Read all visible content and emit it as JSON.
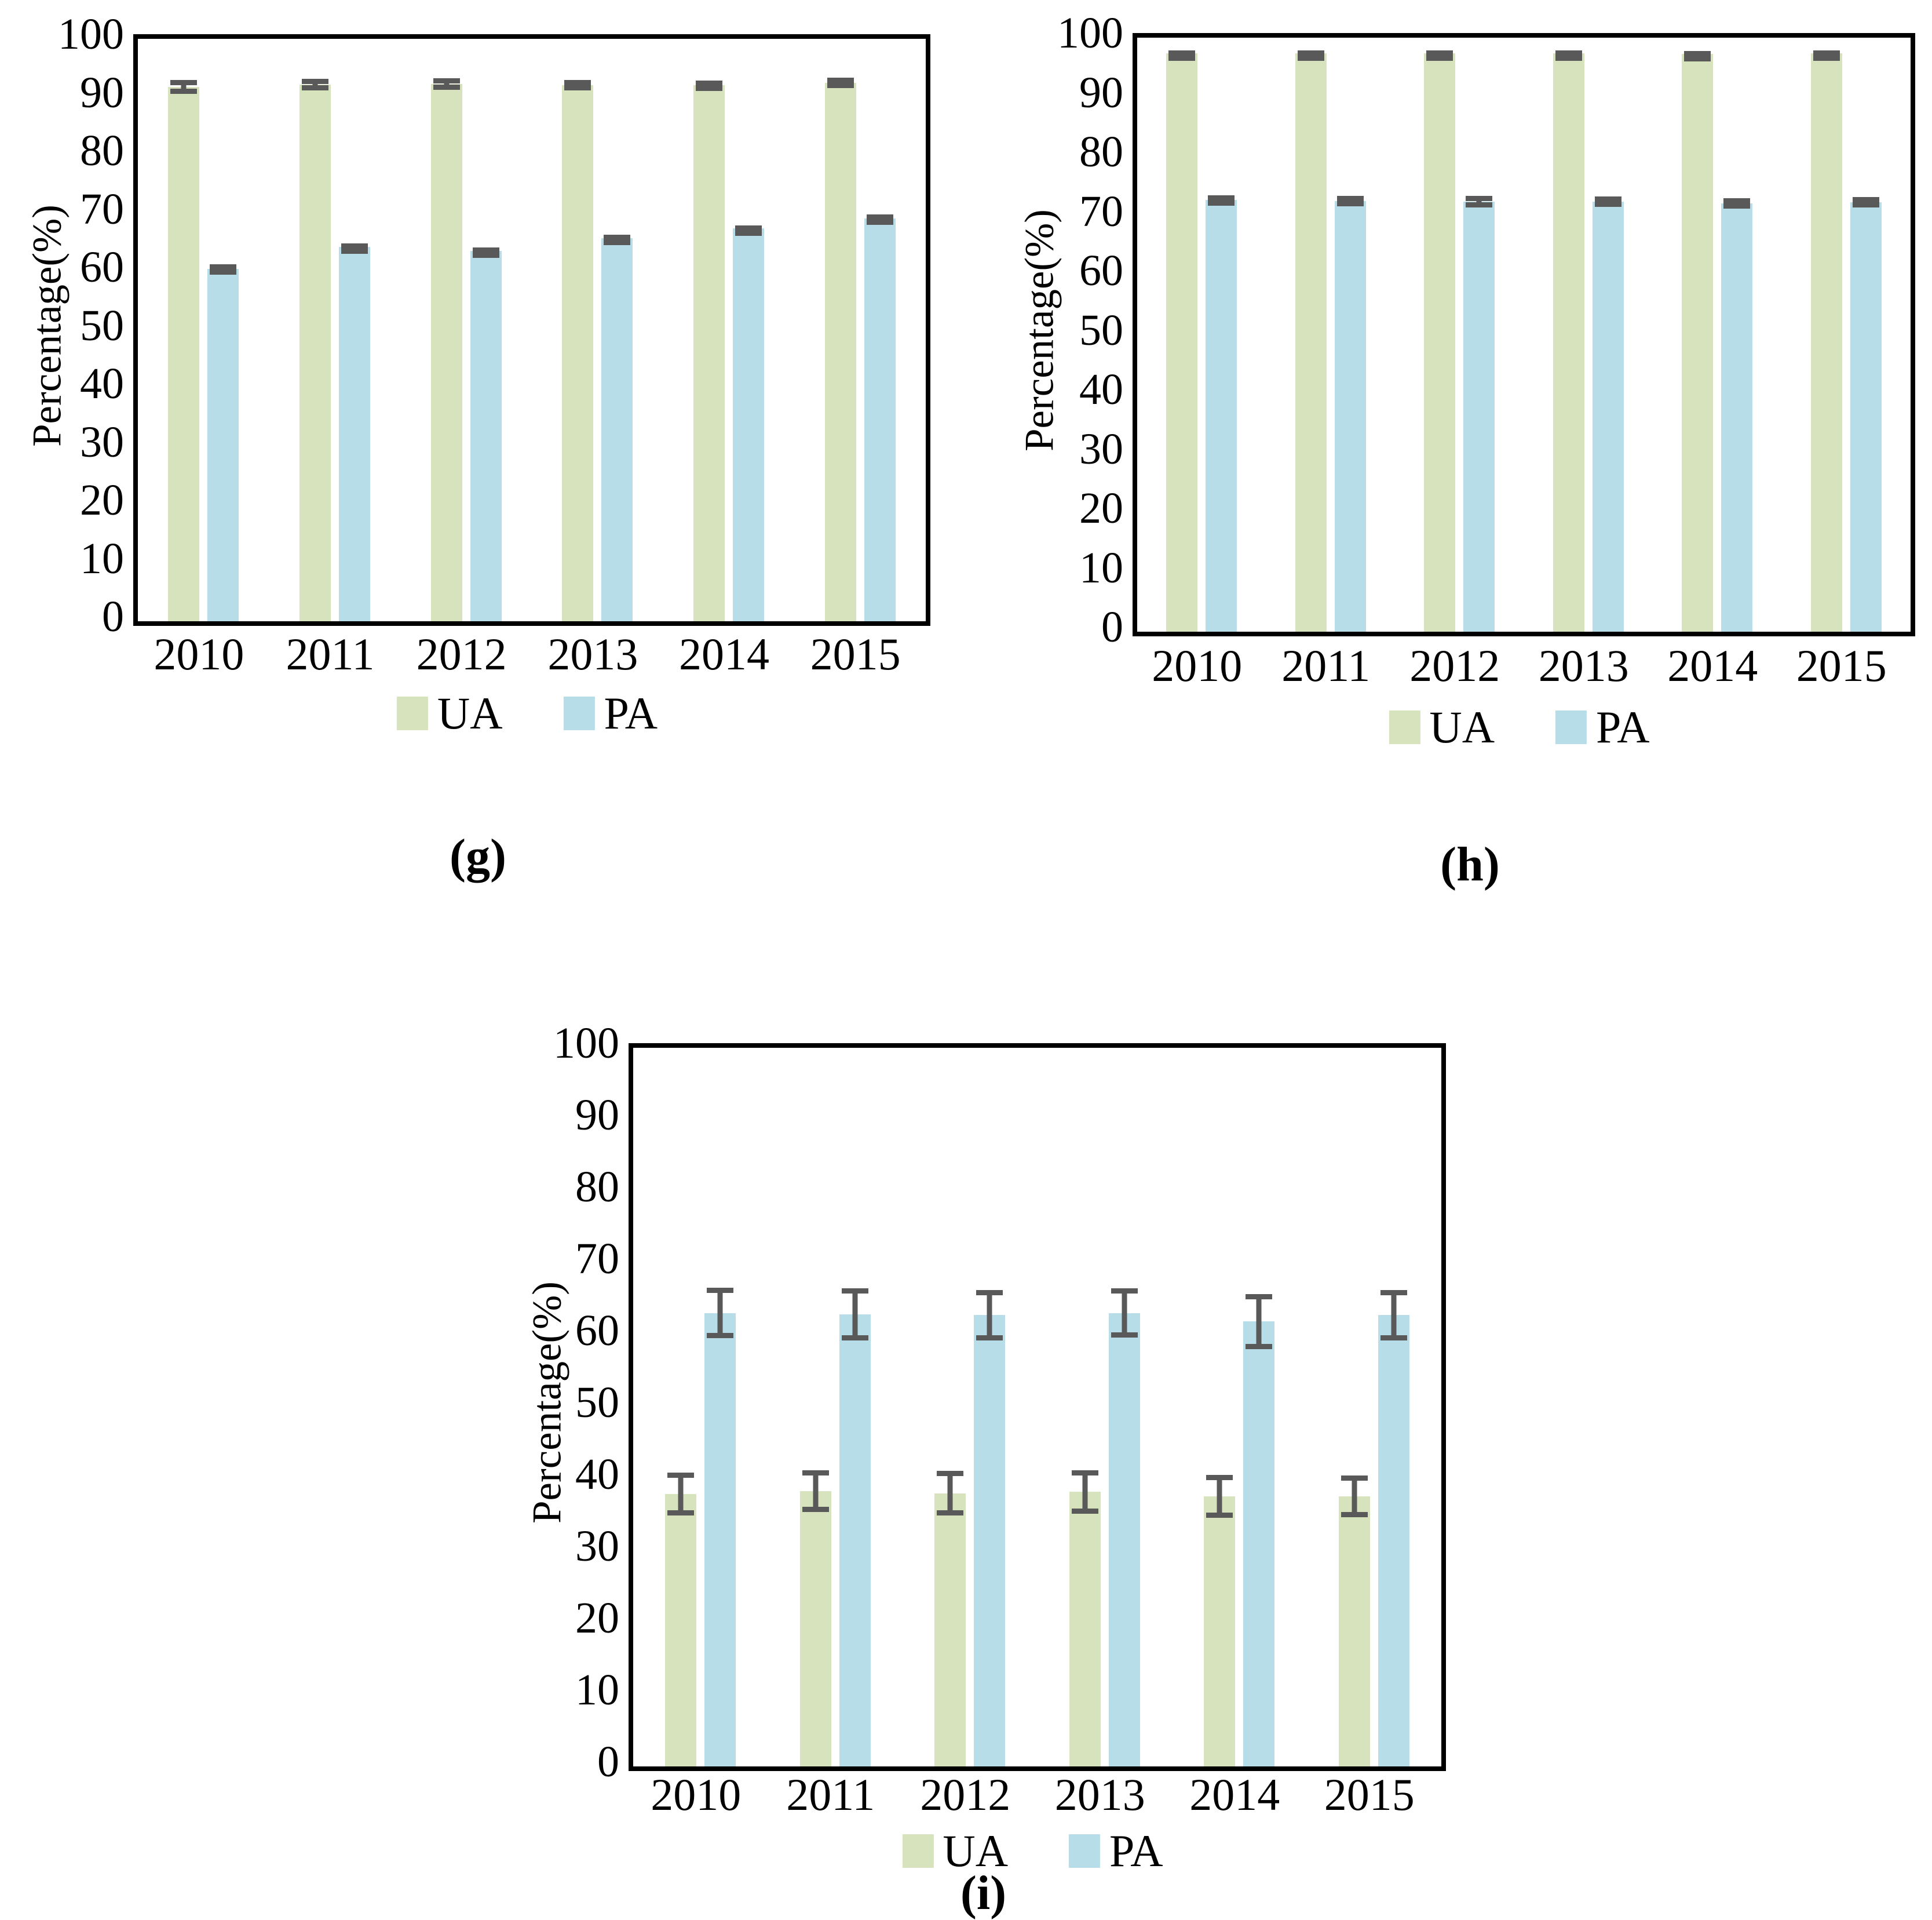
{
  "chart_data": [
    {
      "id": "g",
      "type": "bar",
      "panel_label": "(g)",
      "ylabel": "Percentage(%)",
      "ylim": [
        0,
        100
      ],
      "ytick_step": 10,
      "grid": false,
      "legend_position": "bottom",
      "error_color": "#595959",
      "categories": [
        "2010",
        "2011",
        "2012",
        "2013",
        "2014",
        "2015"
      ],
      "series": [
        {
          "name": "UA",
          "color": "#d7e3bd",
          "values": [
            91.7,
            92.1,
            92.2,
            92.0,
            92.0,
            92.4
          ],
          "errors": [
            1.2,
            1.0,
            1.0,
            0.9,
            0.8,
            0.9
          ]
        },
        {
          "name": "PA",
          "color": "#b7dde8",
          "values": [
            60.5,
            64.3,
            63.6,
            65.8,
            67.5,
            69.2
          ],
          "errors": [
            0.8,
            0.6,
            0.6,
            0.6,
            0.5,
            0.7
          ]
        }
      ]
    },
    {
      "id": "h",
      "type": "bar",
      "panel_label": "(h)",
      "ylabel": "Percentage(%)",
      "ylim": [
        0,
        100
      ],
      "ytick_step": 10,
      "grid": false,
      "legend_position": "bottom",
      "error_color": "#595959",
      "categories": [
        "2010",
        "2011",
        "2012",
        "2013",
        "2014",
        "2015"
      ],
      "series": [
        {
          "name": "UA",
          "color": "#d7e3bd",
          "values": [
            97.4,
            97.4,
            97.4,
            97.4,
            97.3,
            97.4
          ],
          "errors": [
            0.5,
            0.5,
            0.5,
            0.5,
            0.5,
            0.5
          ]
        },
        {
          "name": "PA",
          "color": "#b7dde8",
          "values": [
            72.7,
            72.5,
            72.4,
            72.4,
            72.1,
            72.3
          ],
          "errors": [
            0.8,
            0.9,
            1.0,
            0.9,
            0.9,
            0.9
          ]
        }
      ]
    },
    {
      "id": "i",
      "type": "bar",
      "panel_label": "(i)",
      "ylabel": "Percentage(%)",
      "ylim": [
        0,
        100
      ],
      "ytick_step": 10,
      "grid": false,
      "legend_position": "bottom",
      "error_color": "#595959",
      "categories": [
        "2010",
        "2011",
        "2012",
        "2013",
        "2014",
        "2015"
      ],
      "series": [
        {
          "name": "UA",
          "color": "#d7e3bd",
          "values": [
            37.9,
            38.3,
            38.0,
            38.2,
            37.6,
            37.6
          ],
          "errors": [
            3.0,
            2.9,
            3.1,
            3.0,
            3.0,
            2.9
          ]
        },
        {
          "name": "PA",
          "color": "#b7dde8",
          "values": [
            63.1,
            62.9,
            62.8,
            63.1,
            61.9,
            62.8
          ],
          "errors": [
            3.5,
            3.6,
            3.5,
            3.4,
            3.8,
            3.5
          ]
        }
      ]
    }
  ]
}
